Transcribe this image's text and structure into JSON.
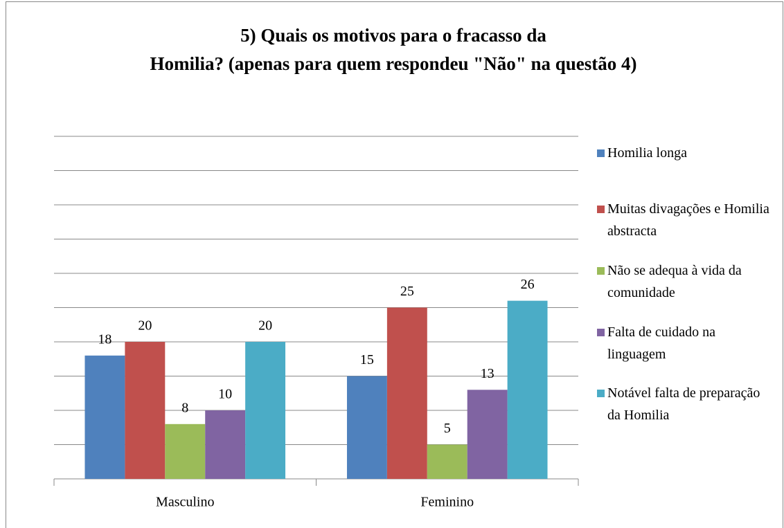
{
  "chart_data": {
    "type": "bar",
    "title": "5) Quais os motivos para o fracasso da Homilia? (apenas para quem respondeu \"Não\" na questão 4)",
    "categories": [
      "Masculino",
      "Feminino"
    ],
    "series": [
      {
        "name": "Homilia longa",
        "color": "#4f81bd",
        "values": [
          18,
          15
        ]
      },
      {
        "name": "Muitas divagações e Homilia abstracta",
        "color": "#c0504d",
        "values": [
          20,
          25
        ]
      },
      {
        "name": "Não se adequa à vida da comunidade",
        "color": "#9bbb59",
        "values": [
          8,
          5
        ]
      },
      {
        "name": "Falta de cuidado na linguagem",
        "color": "#8064a2",
        "values": [
          10,
          13
        ]
      },
      {
        "name": "Notável falta de preparação da Homilia",
        "color": "#4bacc6",
        "values": [
          20,
          26
        ]
      }
    ],
    "ylim": [
      0,
      50
    ],
    "yticks": [
      0,
      5,
      10,
      15,
      20,
      25,
      30,
      35,
      40,
      45,
      50
    ],
    "grid": true,
    "legend": "right"
  }
}
